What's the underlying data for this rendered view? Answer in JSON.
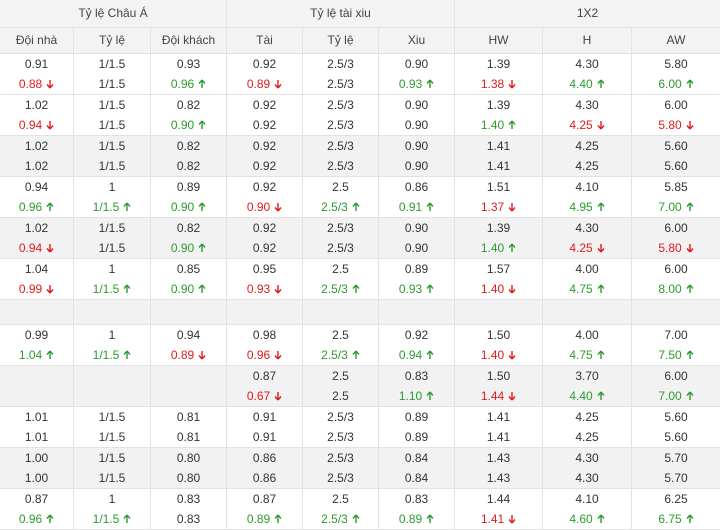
{
  "table": {
    "groups": [
      {
        "label": "Tỷ lệ Châu Á",
        "span": 3
      },
      {
        "label": "Tỷ lệ tài xiu",
        "span": 3
      },
      {
        "label": "1X2",
        "span": 3
      }
    ],
    "columns": [
      "Đội nhà",
      "Tỷ lệ",
      "Đội khách",
      "Tài",
      "Tỷ lệ",
      "Xiu",
      "HW",
      "H",
      "AW"
    ],
    "blocks": [
      [
        [
          "0.91",
          "1/1.5",
          "0.93",
          "0.92",
          "2.5/3",
          "0.90",
          "1.39",
          "4.30",
          "5.80"
        ],
        [
          {
            "text": "0.88",
            "trend": "down"
          },
          "1/1.5",
          {
            "text": "0.96",
            "trend": "up"
          },
          {
            "text": "0.89",
            "trend": "down"
          },
          "2.5/3",
          {
            "text": "0.93",
            "trend": "up"
          },
          {
            "text": "1.38",
            "trend": "down"
          },
          {
            "text": "4.40",
            "trend": "up"
          },
          {
            "text": "6.00",
            "trend": "up"
          }
        ]
      ],
      [
        [
          "1.02",
          "1/1.5",
          "0.82",
          "0.92",
          "2.5/3",
          "0.90",
          "1.39",
          "4.30",
          "6.00"
        ],
        [
          {
            "text": "0.94",
            "trend": "down"
          },
          "1/1.5",
          {
            "text": "0.90",
            "trend": "up"
          },
          "0.92",
          "2.5/3",
          "0.90",
          {
            "text": "1.40",
            "trend": "up"
          },
          {
            "text": "4.25",
            "trend": "down"
          },
          {
            "text": "5.80",
            "trend": "down"
          }
        ]
      ],
      [
        [
          "1.02",
          "1/1.5",
          "0.82",
          "0.92",
          "2.5/3",
          "0.90",
          "1.41",
          "4.25",
          "5.60"
        ],
        [
          "1.02",
          "1/1.5",
          "0.82",
          "0.92",
          "2.5/3",
          "0.90",
          "1.41",
          "4.25",
          "5.60"
        ]
      ],
      [
        [
          "0.94",
          "1",
          "0.89",
          "0.92",
          "2.5",
          "0.86",
          "1.51",
          "4.10",
          "5.85"
        ],
        [
          {
            "text": "0.96",
            "trend": "up"
          },
          {
            "text": "1/1.5",
            "trend": "up"
          },
          {
            "text": "0.90",
            "trend": "up"
          },
          {
            "text": "0.90",
            "trend": "down"
          },
          {
            "text": "2.5/3",
            "trend": "up"
          },
          {
            "text": "0.91",
            "trend": "up"
          },
          {
            "text": "1.37",
            "trend": "down"
          },
          {
            "text": "4.95",
            "trend": "up"
          },
          {
            "text": "7.00",
            "trend": "up"
          }
        ]
      ],
      [
        [
          "1.02",
          "1/1.5",
          "0.82",
          "0.92",
          "2.5/3",
          "0.90",
          "1.39",
          "4.30",
          "6.00"
        ],
        [
          {
            "text": "0.94",
            "trend": "down"
          },
          "1/1.5",
          {
            "text": "0.90",
            "trend": "up"
          },
          "0.92",
          "2.5/3",
          "0.90",
          {
            "text": "1.40",
            "trend": "up"
          },
          {
            "text": "4.25",
            "trend": "down"
          },
          {
            "text": "5.80",
            "trend": "down"
          }
        ]
      ],
      [
        [
          "1.04",
          "1",
          "0.85",
          "0.95",
          "2.5",
          "0.89",
          "1.57",
          "4.00",
          "6.00"
        ],
        [
          {
            "text": "0.99",
            "trend": "down"
          },
          {
            "text": "1/1.5",
            "trend": "up"
          },
          {
            "text": "0.90",
            "trend": "up"
          },
          {
            "text": "0.93",
            "trend": "down"
          },
          {
            "text": "2.5/3",
            "trend": "up"
          },
          {
            "text": "0.93",
            "trend": "up"
          },
          {
            "text": "1.40",
            "trend": "down"
          },
          {
            "text": "4.75",
            "trend": "up"
          },
          {
            "text": "8.00",
            "trend": "up"
          }
        ]
      ],
      [],
      [
        [
          "0.99",
          "1",
          "0.94",
          "0.98",
          "2.5",
          "0.92",
          "1.50",
          "4.00",
          "7.00"
        ],
        [
          {
            "text": "1.04",
            "trend": "up"
          },
          {
            "text": "1/1.5",
            "trend": "up"
          },
          {
            "text": "0.89",
            "trend": "down"
          },
          {
            "text": "0.96",
            "trend": "down"
          },
          {
            "text": "2.5/3",
            "trend": "up"
          },
          {
            "text": "0.94",
            "trend": "up"
          },
          {
            "text": "1.40",
            "trend": "down"
          },
          {
            "text": "4.75",
            "trend": "up"
          },
          {
            "text": "7.50",
            "trend": "up"
          }
        ]
      ],
      [
        [
          null,
          null,
          null,
          "0.87",
          "2.5",
          "0.83",
          "1.50",
          "3.70",
          "6.00"
        ],
        [
          null,
          null,
          null,
          {
            "text": "0.67",
            "trend": "down"
          },
          "2.5",
          {
            "text": "1.10",
            "trend": "up"
          },
          {
            "text": "1.44",
            "trend": "down"
          },
          {
            "text": "4.40",
            "trend": "up"
          },
          {
            "text": "7.00",
            "trend": "up"
          }
        ]
      ],
      [
        [
          "1.01",
          "1/1.5",
          "0.81",
          "0.91",
          "2.5/3",
          "0.89",
          "1.41",
          "4.25",
          "5.60"
        ],
        [
          "1.01",
          "1/1.5",
          "0.81",
          "0.91",
          "2.5/3",
          "0.89",
          "1.41",
          "4.25",
          "5.60"
        ]
      ],
      [
        [
          "1.00",
          "1/1.5",
          "0.80",
          "0.86",
          "2.5/3",
          "0.84",
          "1.43",
          "4.30",
          "5.70"
        ],
        [
          "1.00",
          "1/1.5",
          "0.80",
          "0.86",
          "2.5/3",
          "0.84",
          "1.43",
          "4.30",
          "5.70"
        ]
      ],
      [
        [
          "0.87",
          "1",
          "0.83",
          "0.87",
          "2.5",
          "0.83",
          "1.44",
          "4.10",
          "6.25"
        ],
        [
          {
            "text": "0.96",
            "trend": "up"
          },
          {
            "text": "1/1.5",
            "trend": "up"
          },
          "0.83",
          {
            "text": "0.89",
            "trend": "up"
          },
          {
            "text": "2.5/3",
            "trend": "up"
          },
          {
            "text": "0.89",
            "trend": "up"
          },
          {
            "text": "1.41",
            "trend": "down"
          },
          {
            "text": "4.60",
            "trend": "up"
          },
          {
            "text": "6.75",
            "trend": "up"
          }
        ]
      ]
    ]
  }
}
